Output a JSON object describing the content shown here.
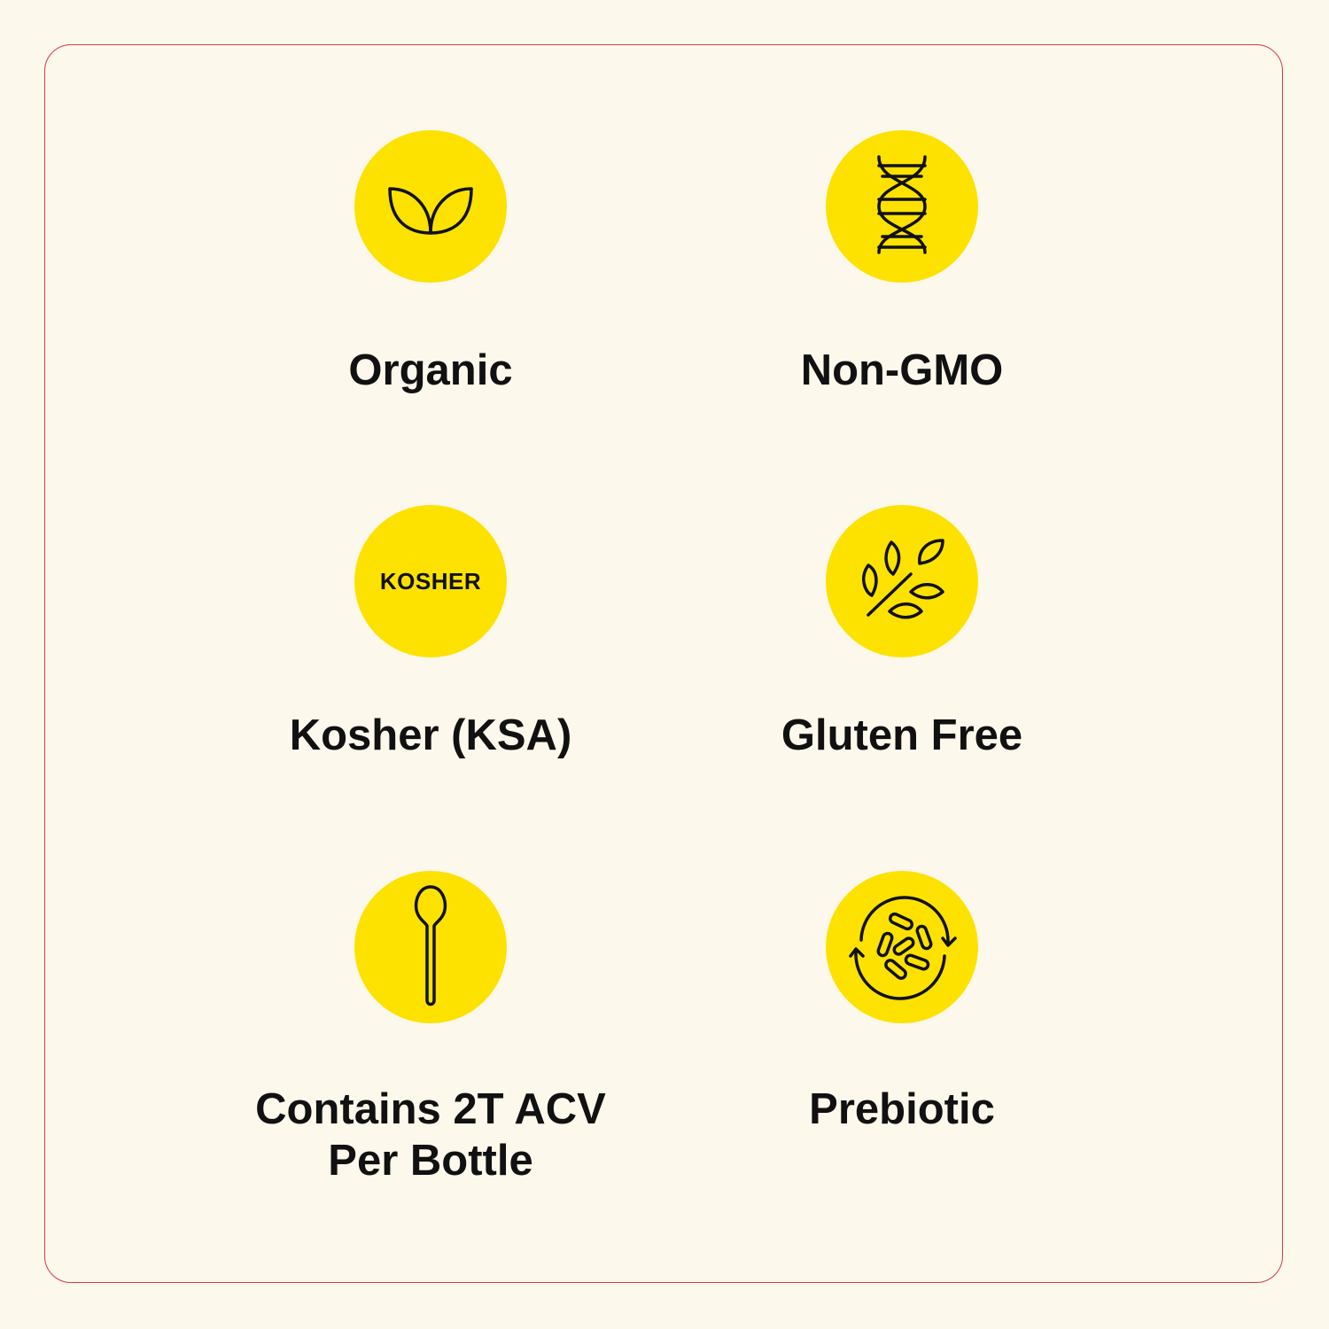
{
  "colors": {
    "background": "#fdf8ec",
    "badge": "#fde200",
    "border": "#d43a45",
    "ink": "#111111"
  },
  "features": [
    {
      "icon": "leaf-icon",
      "label": "Organic"
    },
    {
      "icon": "dna-icon",
      "label": "Non-GMO"
    },
    {
      "icon": "kosher-text-icon",
      "icon_text": "KOSHER",
      "label": "Kosher (KSA)"
    },
    {
      "icon": "wheat-icon",
      "label": "Gluten Free"
    },
    {
      "icon": "spoon-icon",
      "label_lines": [
        "Contains 2T ACV",
        "Per Bottle"
      ]
    },
    {
      "icon": "bacteria-cycle-icon",
      "label": "Prebiotic"
    }
  ]
}
